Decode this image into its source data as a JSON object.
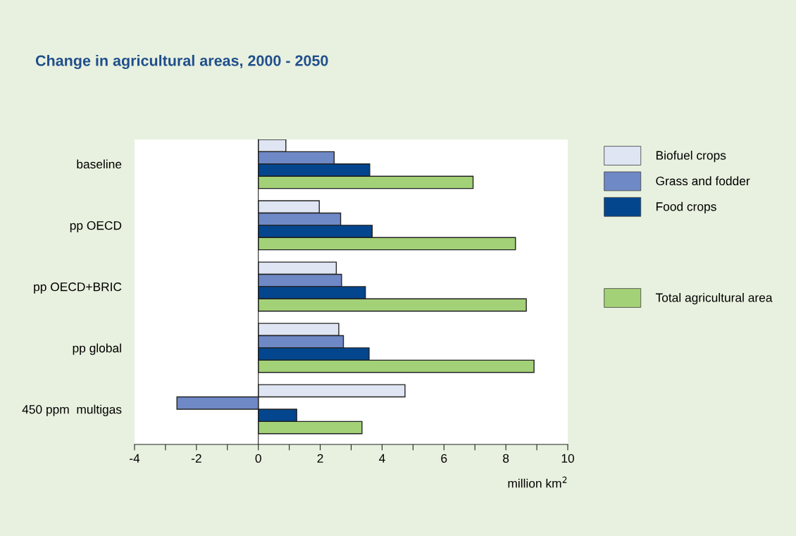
{
  "chart_data": {
    "type": "bar",
    "orientation": "horizontal",
    "title": "Change in agricultural areas, 2000 - 2050",
    "xlabel": "million km$^{2}$",
    "categories": [
      "baseline",
      "pp OECD",
      "pp OECD+BRIC",
      "pp global",
      "450 ppm  multigas"
    ],
    "series": [
      {
        "name": "Biofuel crops",
        "color": "#dfe5f3",
        "values": [
          0.89,
          1.97,
          2.52,
          2.6,
          4.74
        ]
      },
      {
        "name": "Grass and fodder",
        "color": "#6f88c6",
        "values": [
          2.45,
          2.66,
          2.69,
          2.75,
          -2.63
        ]
      },
      {
        "name": "Food crops",
        "color": "#03468e",
        "values": [
          3.6,
          3.68,
          3.46,
          3.58,
          1.24
        ]
      },
      {
        "name": "Total agricultural area",
        "color": "#a3d177",
        "values": [
          6.94,
          8.31,
          8.66,
          8.91,
          3.35
        ]
      }
    ],
    "xlim": [
      -4,
      10
    ],
    "xticks": [
      -4,
      {
        "value": -3,
        "label": null
      },
      -2,
      {
        "value": -1,
        "label": null
      },
      0,
      {
        "value": 1,
        "label": null
      },
      2,
      {
        "value": 3,
        "label": null
      },
      4,
      {
        "value": 5,
        "label": null
      },
      6,
      {
        "value": 7,
        "label": null
      },
      8,
      {
        "value": 9,
        "label": null
      },
      10
    ],
    "legend": "right"
  }
}
